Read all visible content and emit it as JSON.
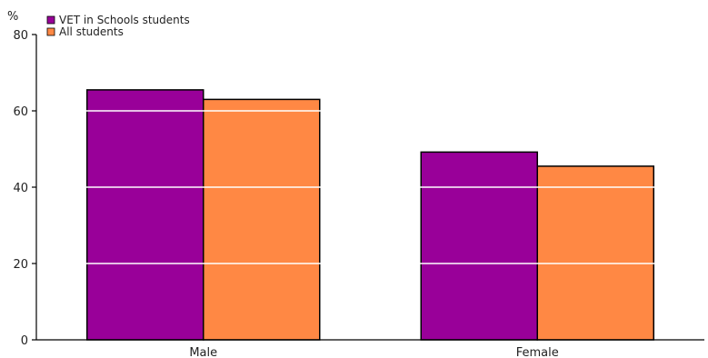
{
  "chart_data": {
    "type": "bar",
    "y_unit": "%",
    "categories": [
      "Male",
      "Female"
    ],
    "series": [
      {
        "name": "VET in Schools students",
        "color": "#990099",
        "values": [
          65.5,
          49.2
        ]
      },
      {
        "name": "All students",
        "color": "#FF8844",
        "values": [
          63.0,
          45.5
        ]
      }
    ],
    "ylim": [
      0,
      80
    ],
    "yticks": [
      0,
      20,
      40,
      60,
      80
    ],
    "grid": true,
    "legend_position": "top-left"
  }
}
